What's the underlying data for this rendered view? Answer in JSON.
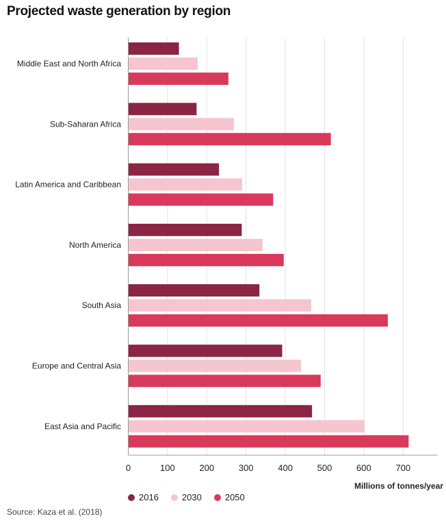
{
  "title": "Projected waste generation by region",
  "source": "Source: Kaza et al. (2018)",
  "chart_data": {
    "type": "bar",
    "orientation": "horizontal",
    "title": "Projected waste generation by region",
    "xlabel": "Millions of tonnes/year",
    "xlim": [
      0,
      787
    ],
    "xticks": [
      0,
      100,
      200,
      300,
      400,
      500,
      600,
      700
    ],
    "grid": true,
    "legend": "bottom-left",
    "categories": [
      "Middle East and North Africa",
      "Sub-Saharan Africa",
      "Latin America and Caribbean",
      "North America",
      "South Asia",
      "Europe and Central Asia",
      "East Asia and Pacific"
    ],
    "series": [
      {
        "name": "2016",
        "color": "#8c2444",
        "values": [
          129,
          174,
          231,
          289,
          334,
          392,
          468
        ]
      },
      {
        "name": "2030",
        "color": "#f5c6cf",
        "values": [
          177,
          269,
          290,
          342,
          466,
          440,
          602
        ]
      },
      {
        "name": "2050",
        "color": "#d9395a",
        "values": [
          255,
          516,
          369,
          396,
          661,
          490,
          714
        ]
      }
    ]
  }
}
